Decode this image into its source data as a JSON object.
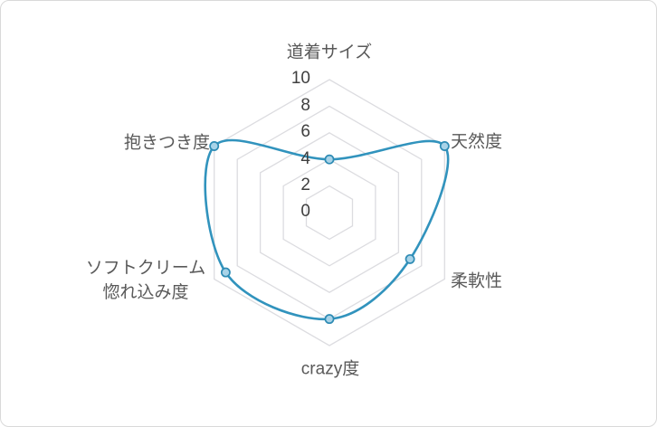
{
  "chart": {
    "background_color": "#ffffff",
    "frame_border_color": "#d9d9d9"
  },
  "chart_data": {
    "type": "radar",
    "title": "",
    "categories": [
      "道着サイズ",
      "天然度",
      "柔軟性",
      "crazy度",
      "ソフトクリーム惚れ込み度",
      "抱きつき度"
    ],
    "category_display": [
      "道着サイズ",
      "天然度",
      "柔軟性",
      "crazy度",
      "ソフトクリーム\n惚れ込み度",
      "抱きつき度"
    ],
    "values": [
      4,
      10,
      7,
      8,
      9,
      10
    ],
    "axis_ticks": [
      10,
      8,
      6,
      4,
      2,
      0
    ],
    "axis_range": [
      0,
      10
    ],
    "grid_levels": [
      2,
      4,
      6,
      8,
      10
    ],
    "grid": true,
    "legend": false,
    "smoothed_line": true,
    "line_color": "#3193bd",
    "marker_fill": "#a8d3e8",
    "marker_stroke": "#2e8bb4",
    "grid_color": "#dcdce0",
    "tick_label_color": "#3f3f3f",
    "category_label_color": "#595959"
  }
}
